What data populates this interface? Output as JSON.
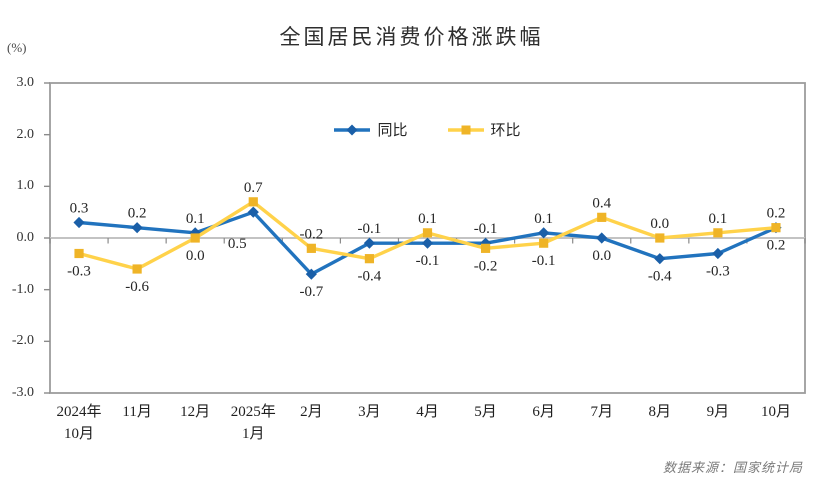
{
  "title": "全国居民消费价格涨跌幅",
  "unit_label": "(%)",
  "source_note": "数据来源：国家统计局",
  "colors": {
    "yoy_line": "#2173be",
    "yoy_marker": "#1a5fa8",
    "mom_line": "#ffd24a",
    "mom_marker": "#efb427",
    "axis_frame": "#9c9c9c",
    "zero_line": "#c3c3c3",
    "tick": "#8a8a8a",
    "label_text": "#262626"
  },
  "chart_data": {
    "type": "line",
    "title": "全国居民消费价格涨跌幅",
    "ylabel": "(%)",
    "categories": [
      "2024年\n10月",
      "11月",
      "12月",
      "2025年\n1月",
      "2月",
      "3月",
      "4月",
      "5月",
      "6月",
      "7月",
      "8月",
      "9月",
      "10月"
    ],
    "series": [
      {
        "name": "同比",
        "color": "#2173be",
        "marker": "diamond",
        "values": [
          0.3,
          0.2,
          0.1,
          0.5,
          -0.7,
          -0.1,
          -0.1,
          -0.1,
          0.1,
          0.0,
          -0.4,
          -0.3,
          0.2
        ]
      },
      {
        "name": "环比",
        "color": "#ffd24a",
        "marker": "square",
        "values": [
          -0.3,
          -0.6,
          0.0,
          0.7,
          -0.2,
          -0.4,
          0.1,
          -0.2,
          -0.1,
          0.4,
          0.0,
          0.1,
          0.2
        ]
      }
    ],
    "ylim": [
      -3.0,
      3.0
    ],
    "yticks": [
      3.0,
      2.0,
      1.0,
      0.0,
      -1.0,
      -2.0,
      -3.0
    ],
    "ytick_labels": [
      "3.0",
      "2.0",
      "1.0",
      "0.0",
      "-1.0",
      "-2.0",
      "-3.0"
    ],
    "grid": false,
    "legend_position": "top-center",
    "data_labels": true
  }
}
